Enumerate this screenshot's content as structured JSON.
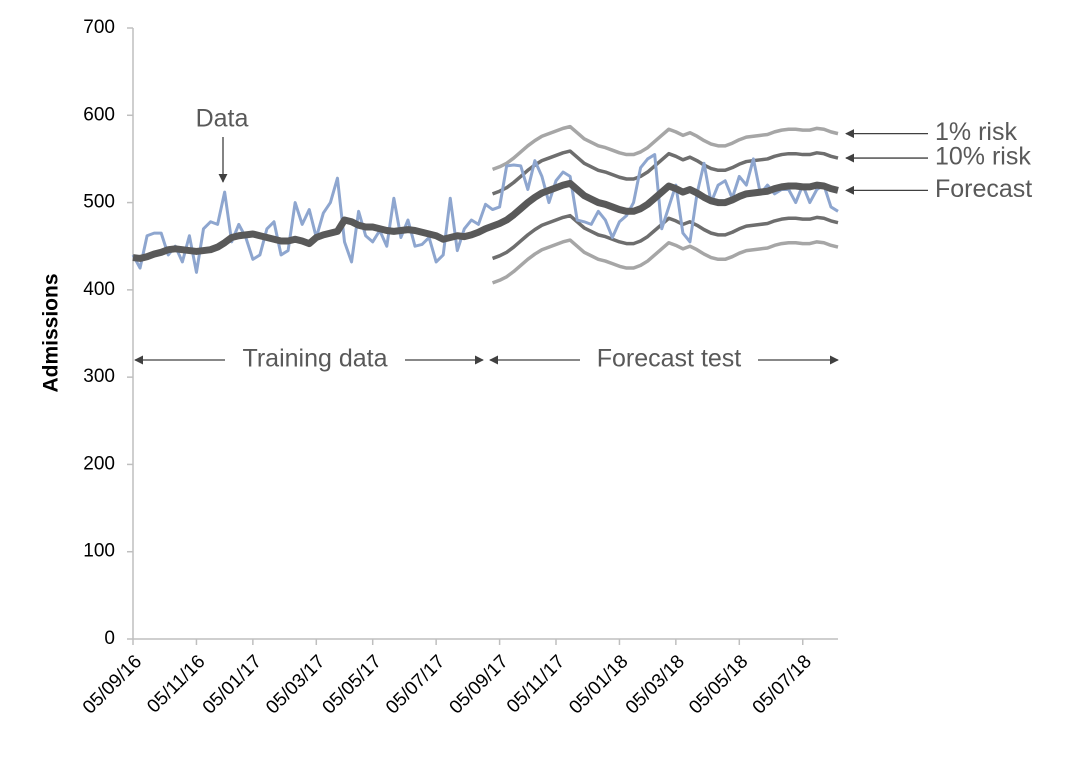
{
  "chart_data": {
    "type": "line",
    "y_label": "Admissions",
    "categories": [
      "05/09/16",
      null,
      null,
      null,
      null,
      null,
      null,
      null,
      null,
      "05/11/16",
      null,
      null,
      null,
      null,
      null,
      null,
      null,
      "05/01/17",
      null,
      null,
      null,
      null,
      null,
      null,
      null,
      null,
      "05/03/17",
      null,
      null,
      null,
      null,
      null,
      null,
      null,
      "05/05/17",
      null,
      null,
      null,
      null,
      null,
      null,
      null,
      null,
      "05/07/17",
      null,
      null,
      null,
      null,
      null,
      null,
      null,
      null,
      "05/09/17",
      null,
      null,
      null,
      null,
      null,
      null,
      null,
      "05/11/17",
      null,
      null,
      null,
      null,
      null,
      null,
      null,
      null,
      "05/01/18",
      null,
      null,
      null,
      null,
      null,
      null,
      null,
      "05/03/18",
      null,
      null,
      null,
      null,
      null,
      null,
      null,
      null,
      "05/05/18",
      null,
      null,
      null,
      null,
      null,
      null,
      null,
      null,
      "05/07/18",
      null,
      null,
      null,
      null,
      null
    ],
    "ylim": [
      0,
      700
    ],
    "yticks": [
      0,
      100,
      200,
      300,
      400,
      500,
      600,
      700
    ],
    "series": [
      {
        "name": "1% risk",
        "color": "#a6a6a6",
        "values": [
          null,
          null,
          null,
          null,
          null,
          null,
          null,
          null,
          null,
          null,
          null,
          null,
          null,
          null,
          null,
          null,
          null,
          null,
          null,
          null,
          null,
          null,
          null,
          null,
          null,
          null,
          null,
          null,
          null,
          null,
          null,
          null,
          null,
          null,
          null,
          null,
          null,
          null,
          null,
          null,
          null,
          null,
          null,
          null,
          null,
          null,
          null,
          null,
          null,
          null,
          null,
          538,
          541,
          545,
          551,
          558,
          565,
          571,
          576,
          579,
          582,
          585,
          587,
          580,
          573,
          569,
          565,
          563,
          560,
          557,
          555,
          555,
          558,
          563,
          570,
          577,
          584,
          581,
          577,
          580,
          576,
          571,
          567,
          565,
          565,
          568,
          572,
          575,
          576,
          577,
          578,
          581,
          583,
          584,
          584,
          583,
          583,
          585,
          584,
          581,
          579
        ],
        "lower": [
          null,
          null,
          null,
          null,
          null,
          null,
          null,
          null,
          null,
          null,
          null,
          null,
          null,
          null,
          null,
          null,
          null,
          null,
          null,
          null,
          null,
          null,
          null,
          null,
          null,
          null,
          null,
          null,
          null,
          null,
          null,
          null,
          null,
          null,
          null,
          null,
          null,
          null,
          null,
          null,
          null,
          null,
          null,
          null,
          null,
          null,
          null,
          null,
          null,
          null,
          null,
          408,
          411,
          415,
          421,
          428,
          435,
          441,
          446,
          449,
          452,
          455,
          457,
          450,
          443,
          439,
          435,
          433,
          430,
          427,
          425,
          425,
          428,
          433,
          440,
          447,
          454,
          451,
          447,
          450,
          446,
          441,
          437,
          435,
          435,
          438,
          442,
          445,
          446,
          447,
          448,
          451,
          453,
          454,
          454,
          453,
          453,
          455,
          454,
          451,
          449
        ]
      },
      {
        "name": "10% risk",
        "color": "#6e6e6e",
        "values": [
          null,
          null,
          null,
          null,
          null,
          null,
          null,
          null,
          null,
          null,
          null,
          null,
          null,
          null,
          null,
          null,
          null,
          null,
          null,
          null,
          null,
          null,
          null,
          null,
          null,
          null,
          null,
          null,
          null,
          null,
          null,
          null,
          null,
          null,
          null,
          null,
          null,
          null,
          null,
          null,
          null,
          null,
          null,
          null,
          null,
          null,
          null,
          null,
          null,
          null,
          null,
          510,
          513,
          517,
          523,
          530,
          537,
          543,
          548,
          551,
          554,
          557,
          559,
          552,
          545,
          541,
          537,
          535,
          532,
          529,
          527,
          527,
          530,
          535,
          542,
          549,
          556,
          553,
          549,
          552,
          548,
          543,
          539,
          537,
          537,
          540,
          544,
          547,
          548,
          549,
          550,
          553,
          555,
          556,
          556,
          555,
          555,
          557,
          556,
          553,
          551
        ],
        "lower": [
          null,
          null,
          null,
          null,
          null,
          null,
          null,
          null,
          null,
          null,
          null,
          null,
          null,
          null,
          null,
          null,
          null,
          null,
          null,
          null,
          null,
          null,
          null,
          null,
          null,
          null,
          null,
          null,
          null,
          null,
          null,
          null,
          null,
          null,
          null,
          null,
          null,
          null,
          null,
          null,
          null,
          null,
          null,
          null,
          null,
          null,
          null,
          null,
          null,
          null,
          null,
          436,
          439,
          443,
          449,
          456,
          463,
          469,
          474,
          477,
          480,
          483,
          485,
          478,
          471,
          467,
          463,
          461,
          458,
          455,
          453,
          453,
          456,
          461,
          468,
          475,
          482,
          479,
          475,
          478,
          474,
          469,
          465,
          463,
          463,
          466,
          470,
          473,
          474,
          475,
          476,
          479,
          481,
          482,
          482,
          481,
          481,
          483,
          482,
          479,
          477
        ]
      },
      {
        "name": "Data",
        "color": "#8ea6cf",
        "values": [
          440,
          425,
          462,
          465,
          465,
          440,
          450,
          432,
          462,
          420,
          470,
          478,
          475,
          512,
          455,
          475,
          460,
          435,
          440,
          470,
          478,
          440,
          445,
          500,
          475,
          492,
          460,
          488,
          500,
          528,
          455,
          432,
          490,
          462,
          455,
          468,
          450,
          505,
          460,
          480,
          450,
          452,
          460,
          432,
          440,
          505,
          445,
          470,
          480,
          475,
          498,
          492,
          495,
          542,
          543,
          542,
          515,
          548,
          530,
          500,
          525,
          535,
          530,
          480,
          478,
          475,
          490,
          480,
          460,
          478,
          485,
          500,
          540,
          550,
          555,
          470,
          495,
          520,
          465,
          455,
          510,
          545,
          500,
          520,
          525,
          505,
          530,
          520,
          550,
          510,
          520,
          510,
          515,
          515,
          500,
          520,
          500,
          515,
          520,
          495,
          490
        ]
      },
      {
        "name": "Forecast",
        "color": "#595959",
        "values": [
          437,
          436,
          438,
          441,
          443,
          446,
          447,
          446,
          445,
          444,
          445,
          446,
          449,
          454,
          460,
          462,
          463,
          464,
          462,
          460,
          458,
          456,
          456,
          458,
          456,
          453,
          460,
          463,
          465,
          467,
          480,
          478,
          474,
          472,
          472,
          470,
          468,
          467,
          468,
          469,
          468,
          466,
          464,
          462,
          458,
          460,
          462,
          461,
          463,
          466,
          470,
          473,
          476,
          480,
          486,
          493,
          500,
          506,
          511,
          514,
          517,
          520,
          522,
          515,
          508,
          504,
          500,
          498,
          495,
          492,
          490,
          490,
          493,
          498,
          505,
          512,
          519,
          516,
          512,
          515,
          511,
          506,
          502,
          500,
          500,
          503,
          507,
          510,
          511,
          512,
          513,
          516,
          518,
          519,
          519,
          518,
          518,
          520,
          519,
          516,
          514
        ]
      }
    ],
    "annotations": [
      "Training data",
      "Forecast test"
    ]
  }
}
